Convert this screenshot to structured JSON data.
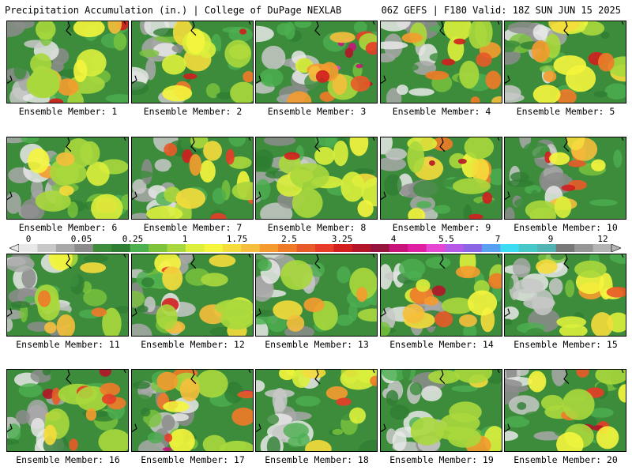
{
  "header": {
    "left": "Precipitation Accumulation (in.) | College of DuPage NEXLAB",
    "right": "06Z GEFS | F180 Valid: 18Z SUN JUN 15 2025"
  },
  "members": [
    {
      "label": "Ensemble Member: 1",
      "wet": 0.55
    },
    {
      "label": "Ensemble Member: 2",
      "wet": 0.5
    },
    {
      "label": "Ensemble Member: 3",
      "wet": 0.75
    },
    {
      "label": "Ensemble Member: 4",
      "wet": 0.55
    },
    {
      "label": "Ensemble Member: 5",
      "wet": 0.55
    },
    {
      "label": "Ensemble Member: 6",
      "wet": 0.5
    },
    {
      "label": "Ensemble Member: 7",
      "wet": 0.6
    },
    {
      "label": "Ensemble Member: 8",
      "wet": 0.55
    },
    {
      "label": "Ensemble Member: 9",
      "wet": 0.6
    },
    {
      "label": "Ensemble Member: 10",
      "wet": 0.5
    },
    {
      "label": "Ensemble Member: 11",
      "wet": 0.35
    },
    {
      "label": "Ensemble Member: 12",
      "wet": 0.5
    },
    {
      "label": "Ensemble Member: 13",
      "wet": 0.3
    },
    {
      "label": "Ensemble Member: 14",
      "wet": 0.6
    },
    {
      "label": "Ensemble Member: 15",
      "wet": 0.4
    },
    {
      "label": "Ensemble Member: 16",
      "wet": 0.55
    },
    {
      "label": "Ensemble Member: 17",
      "wet": 0.6
    },
    {
      "label": "Ensemble Member: 18",
      "wet": 0.45
    },
    {
      "label": "Ensemble Member: 19",
      "wet": 0.35
    },
    {
      "label": "Ensemble Member: 20",
      "wet": 0.55
    }
  ],
  "colorbar": {
    "tick_labels": [
      "0",
      "0.05",
      "0.25",
      "1",
      "1.75",
      "2.5",
      "3.25",
      "4",
      "5.5",
      "7",
      "9",
      "12"
    ],
    "colors": [
      "#e8e8e8",
      "#c8c8c8",
      "#a8a8a8",
      "#8c8c8c",
      "#3c8c3c",
      "#2e7d32",
      "#4caf50",
      "#7cc43c",
      "#a8d83c",
      "#dcef3c",
      "#f5f53c",
      "#f5dc3c",
      "#f5be3c",
      "#f59b2e",
      "#ef7a28",
      "#e85a28",
      "#e83c28",
      "#d21e1e",
      "#b41428",
      "#96143c",
      "#c8147a",
      "#e01ea0",
      "#e646d2",
      "#b45ae6",
      "#8c64e6",
      "#5aa0f0",
      "#3cdcf5",
      "#46c8c8",
      "#50b4b4",
      "#787878",
      "#969696",
      "#b4b4b4"
    ]
  }
}
